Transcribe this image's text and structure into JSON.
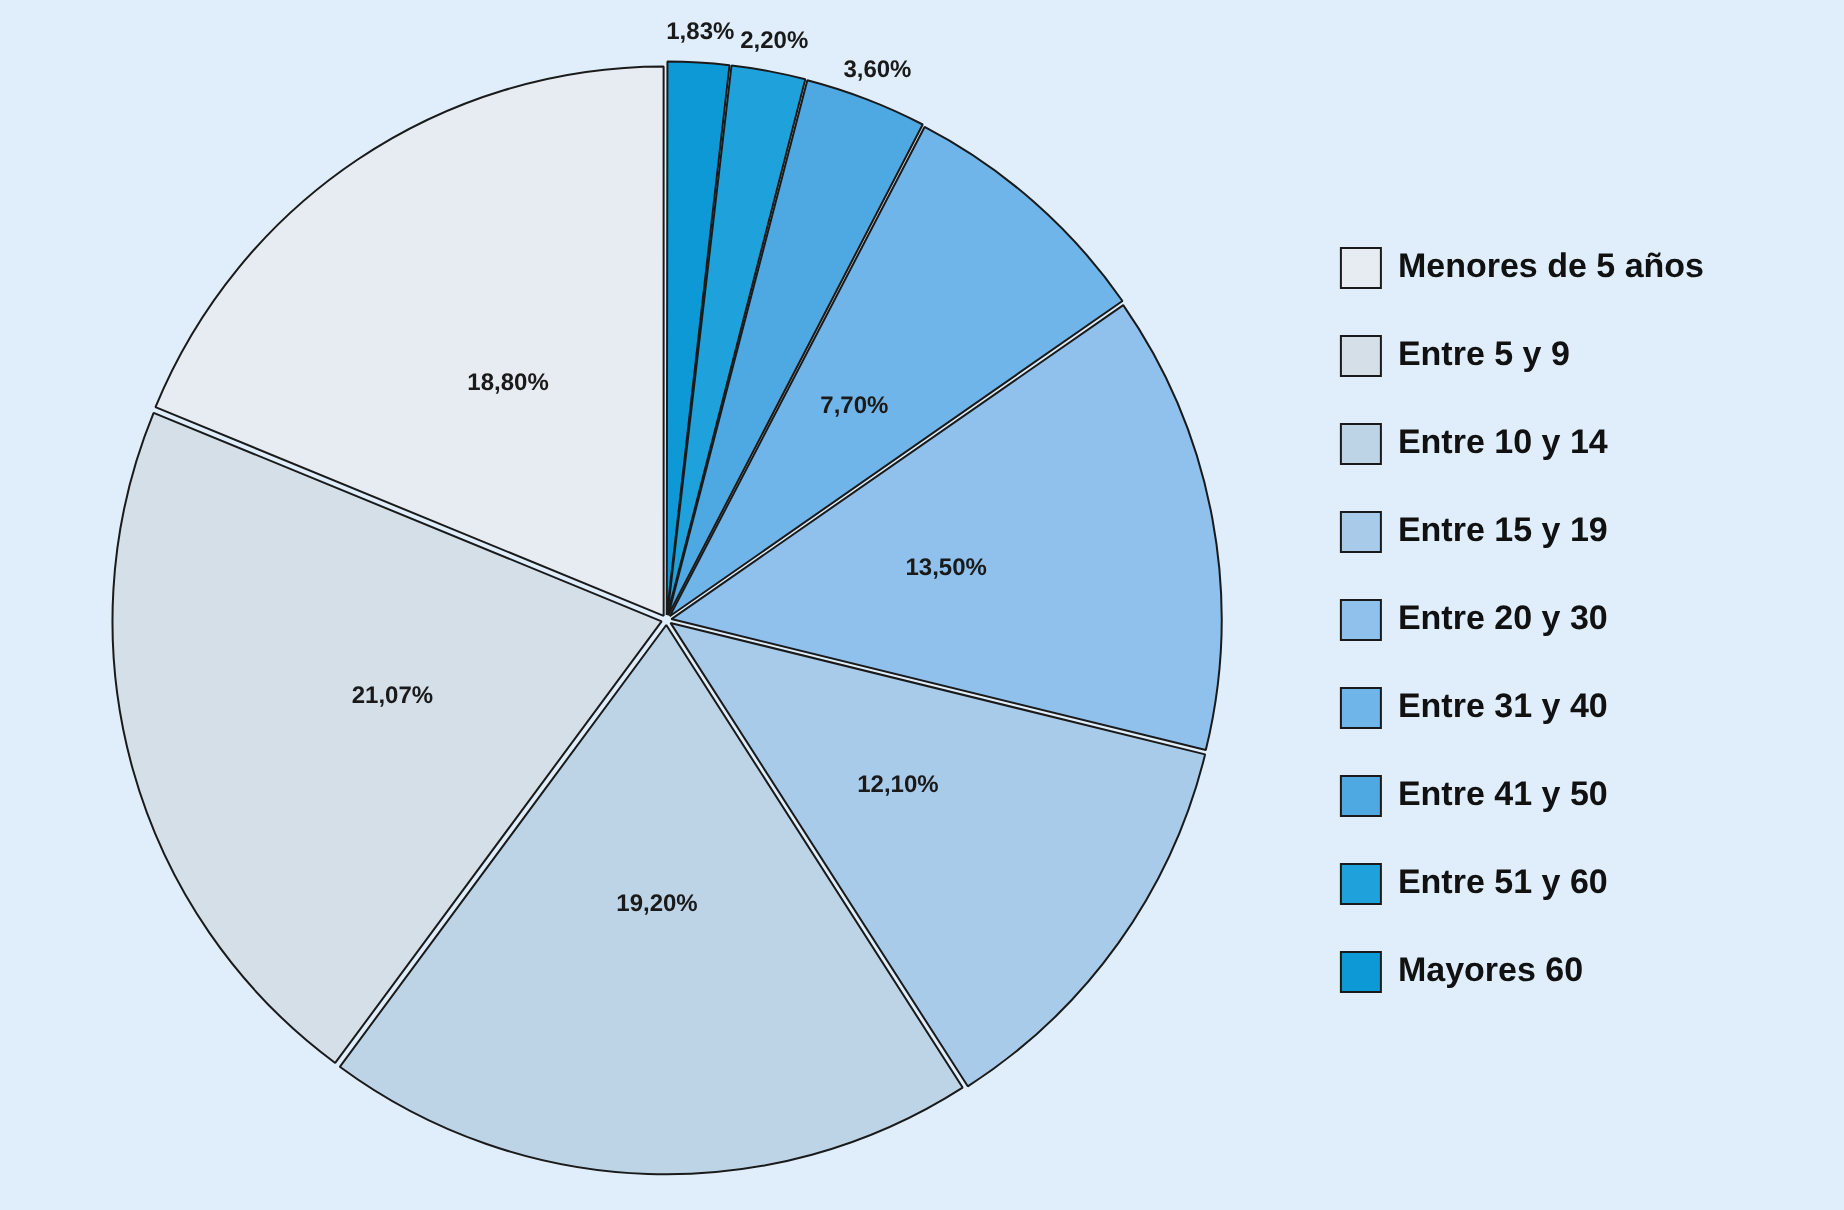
{
  "chart_data": {
    "type": "pie",
    "categories": [
      "Menores de 5 años",
      "Entre 5 y 9",
      "Entre 10 y 14",
      "Entre 15 y 19",
      "Entre 20 y 30",
      "Entre 31 y 40",
      "Entre 41 y 50",
      "Entre 51 y 60",
      "Mayores 60"
    ],
    "values": [
      18.8,
      21.07,
      19.2,
      12.1,
      13.5,
      7.7,
      3.6,
      2.2,
      1.83
    ],
    "colors": [
      "#e6ecf1",
      "#d4dfe8",
      "#bdd3e6",
      "#a8cbea",
      "#8fc1ec",
      "#70b5e9",
      "#4ea8e2",
      "#1fa2dc",
      "#0c99d5"
    ],
    "value_labels": [
      "18,80%",
      "21,07%",
      "19,20%",
      "12,10%",
      "13,50%",
      "7,70%",
      "3,60%",
      "2,20%",
      "1,83%"
    ],
    "legend": "right"
  }
}
